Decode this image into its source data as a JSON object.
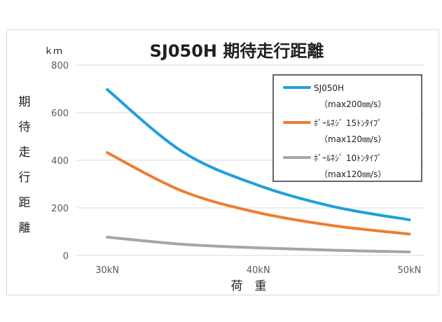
{
  "chart_data": {
    "type": "line",
    "title": "SJ050H 期待走行距離",
    "unit": "ｋｍ",
    "ylabel": "期待走行距離",
    "xlabel": "荷　重",
    "x": [
      30,
      35,
      40,
      45,
      50
    ],
    "xticks": [
      "30kN",
      "40kN",
      "50kN"
    ],
    "xtick_values": [
      30,
      40,
      50
    ],
    "xlim": [
      28,
      51
    ],
    "ylim": [
      0,
      800
    ],
    "yticks": [
      "0",
      "200",
      "400",
      "600",
      "800"
    ],
    "ytick_values": [
      0,
      200,
      400,
      600,
      800
    ],
    "grid": true,
    "legend_position": "top-right",
    "series": [
      {
        "name": "SJ050H",
        "name_sub": "（max200㎜/s）",
        "color": "#1fa0dc",
        "values": [
          697,
          435,
          295,
          205,
          150
        ]
      },
      {
        "name": "ﾎﾞｰﾙﾈｼﾞ 15ﾄﾝﾀｲﾌﾟ",
        "name_sub": "（max120㎜/s）",
        "color": "#ed7d31",
        "values": [
          432,
          270,
          180,
          125,
          90
        ]
      },
      {
        "name": "ﾎﾞｰﾙﾈｼﾞ 10ﾄﾝﾀｲﾌﾟ",
        "name_sub": "（max120㎜/s）",
        "color": "#a5a5a5",
        "values": [
          77,
          47,
          32,
          22,
          15
        ]
      }
    ]
  }
}
